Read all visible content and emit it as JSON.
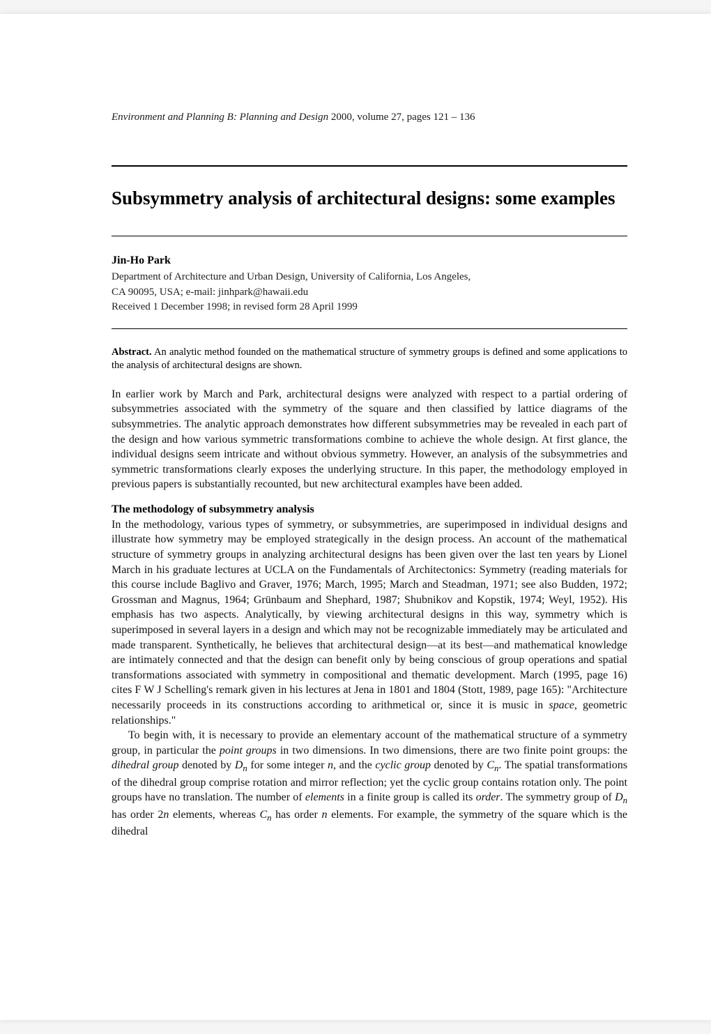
{
  "journal": {
    "name": "Environment and Planning B: Planning and Design",
    "year": "2000",
    "volume": "volume 27",
    "pages": "pages 121 – 136"
  },
  "title": "Subsymmetry analysis of architectural designs: some examples",
  "author": {
    "name": "Jin-Ho Park",
    "affiliation_line1": "Department of Architecture and Urban Design, University of California, Los Angeles,",
    "affiliation_line2": "CA 90095, USA; e-mail: jinhpark@hawaii.edu",
    "received": "Received 1 December 1998; in revised form 28 April 1999"
  },
  "abstract": {
    "label": "Abstract.",
    "text": "An analytic method founded on the mathematical structure of symmetry groups is defined and some applications to the analysis of architectural designs are shown."
  },
  "intro_para": "In earlier work by March and Park, architectural designs were analyzed with respect to a partial ordering of subsymmetries associated with the symmetry of the square and then classified by lattice diagrams of the subsymmetries. The analytic approach demonstrates how different subsymmetries may be revealed in each part of the design and how various symmetric transformations combine to achieve the whole design. At first glance, the individual designs seem intricate and without obvious symmetry. However, an analysis of the subsymmetries and symmetric transformations clearly exposes the underlying structure. In this paper, the methodology employed in previous papers is substantially recounted, but new architectural examples have been added.",
  "section": {
    "heading": "The methodology of subsymmetry analysis",
    "para1_part1": "In the methodology, various types of symmetry, or subsymmetries, are superimposed in individual designs and illustrate how symmetry may be employed strategically in the design process. An account of the mathematical structure of symmetry groups in analyzing architectural designs has been given over the last ten years by Lionel March in his graduate lectures at UCLA on the Fundamentals of Architectonics: Symmetry (reading materials for this course include Baglivo and Graver, 1976; March, 1995; March and Steadman, 1971; see also Budden, 1972; Grossman and Magnus, 1964; Grünbaum and Shephard, 1987; Shubnikov and Kopstik, 1974; Weyl, 1952). His emphasis has two aspects. Analytically, by viewing architectural designs in this way, symmetry which is superimposed in several layers in a design and which may not be recognizable immediately may be articulated and made transparent. Synthetically, he believes that architectural design—at its best—and mathematical knowledge are intimately connected and that the design can benefit only by being conscious of group operations and spatial transformations associated with symmetry in compositional and thematic development. March (1995, page 16) cites F W J Schelling's remark given in his lectures at Jena in 1801 and 1804 (Stott, 1989, page 165): \"Architecture necessarily proceeds in its constructions according to arithmetical or, since it is music in ",
    "para1_space": "space",
    "para1_part2": ", geometric relationships.\"",
    "para2_part1": "To begin with, it is necessary to provide an elementary account of the mathematical structure of a symmetry group, in particular the ",
    "para2_pg": "point groups",
    "para2_part2": " in two dimensions. In two dimensions, there are two finite point groups: the ",
    "para2_dg": "dihedral group",
    "para2_part3": " denoted by ",
    "para2_dn": "D",
    "para2_dn_sub": "n",
    "para2_part4": " for some integer ",
    "para2_n1": "n",
    "para2_part5": ", and the ",
    "para2_cg": "cyclic group",
    "para2_part6": " denoted by ",
    "para2_cn": "C",
    "para2_cn_sub": "n",
    "para2_part7": ". The spatial transformations of the dihedral group comprise rotation and mirror reflection; yet the cyclic group contains rotation only. The point groups have no translation. The number of ",
    "para2_el": "elements",
    "para2_part8": " in a finite group is called its ",
    "para2_ord": "order",
    "para2_part9": ". The symmetry group of ",
    "para2_dn2": "D",
    "para2_dn2_sub": "n",
    "para2_part10": " has order 2",
    "para2_n2": "n",
    "para2_part11": " elements, whereas ",
    "para2_cn2": "C",
    "para2_cn2_sub": "n",
    "para2_part12": " has order ",
    "para2_n3": "n",
    "para2_part13": " elements. For example, the symmetry of the square which is the dihedral"
  }
}
